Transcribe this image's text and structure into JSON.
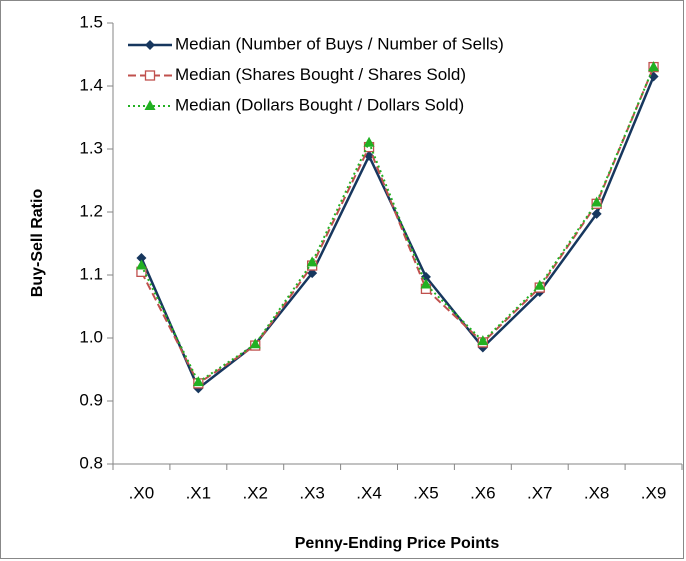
{
  "chart_data": {
    "type": "line",
    "x_label": "Penny-Ending Price Points",
    "y_label": "Buy-Sell Ratio",
    "categories": [
      ".X0",
      ".X1",
      ".X2",
      ".X3",
      ".X4",
      ".X5",
      ".X6",
      ".X7",
      ".X8",
      ".X9"
    ],
    "series": [
      {
        "name": "Median (Number of Buys / Number of Sells)",
        "color": "#17375e",
        "dash": "solid",
        "marker": "diamond",
        "values": [
          1.127,
          0.92,
          0.99,
          1.103,
          1.289,
          1.097,
          0.985,
          1.073,
          1.197,
          1.415
        ]
      },
      {
        "name": "Median (Shares Bought / Shares Sold)",
        "color": "#c0504d",
        "dash": "dashed",
        "marker": "square",
        "values": [
          1.105,
          0.928,
          0.988,
          1.115,
          1.303,
          1.078,
          0.993,
          1.08,
          1.213,
          1.43
        ]
      },
      {
        "name": "Median (Dollars Bought / Dollars Sold)",
        "color": "#22b022",
        "dash": "dotted",
        "marker": "triangle",
        "values": [
          1.115,
          0.93,
          0.99,
          1.12,
          1.31,
          1.085,
          0.995,
          1.083,
          1.215,
          1.43
        ]
      }
    ],
    "ylim": [
      0.8,
      1.5
    ],
    "yticks": [
      0.8,
      0.9,
      {
        "value": 1,
        "label": "1.0"
      },
      1.1,
      1.2,
      1.3,
      1.4,
      1.5
    ],
    "grid": false,
    "legend": "top-left"
  }
}
